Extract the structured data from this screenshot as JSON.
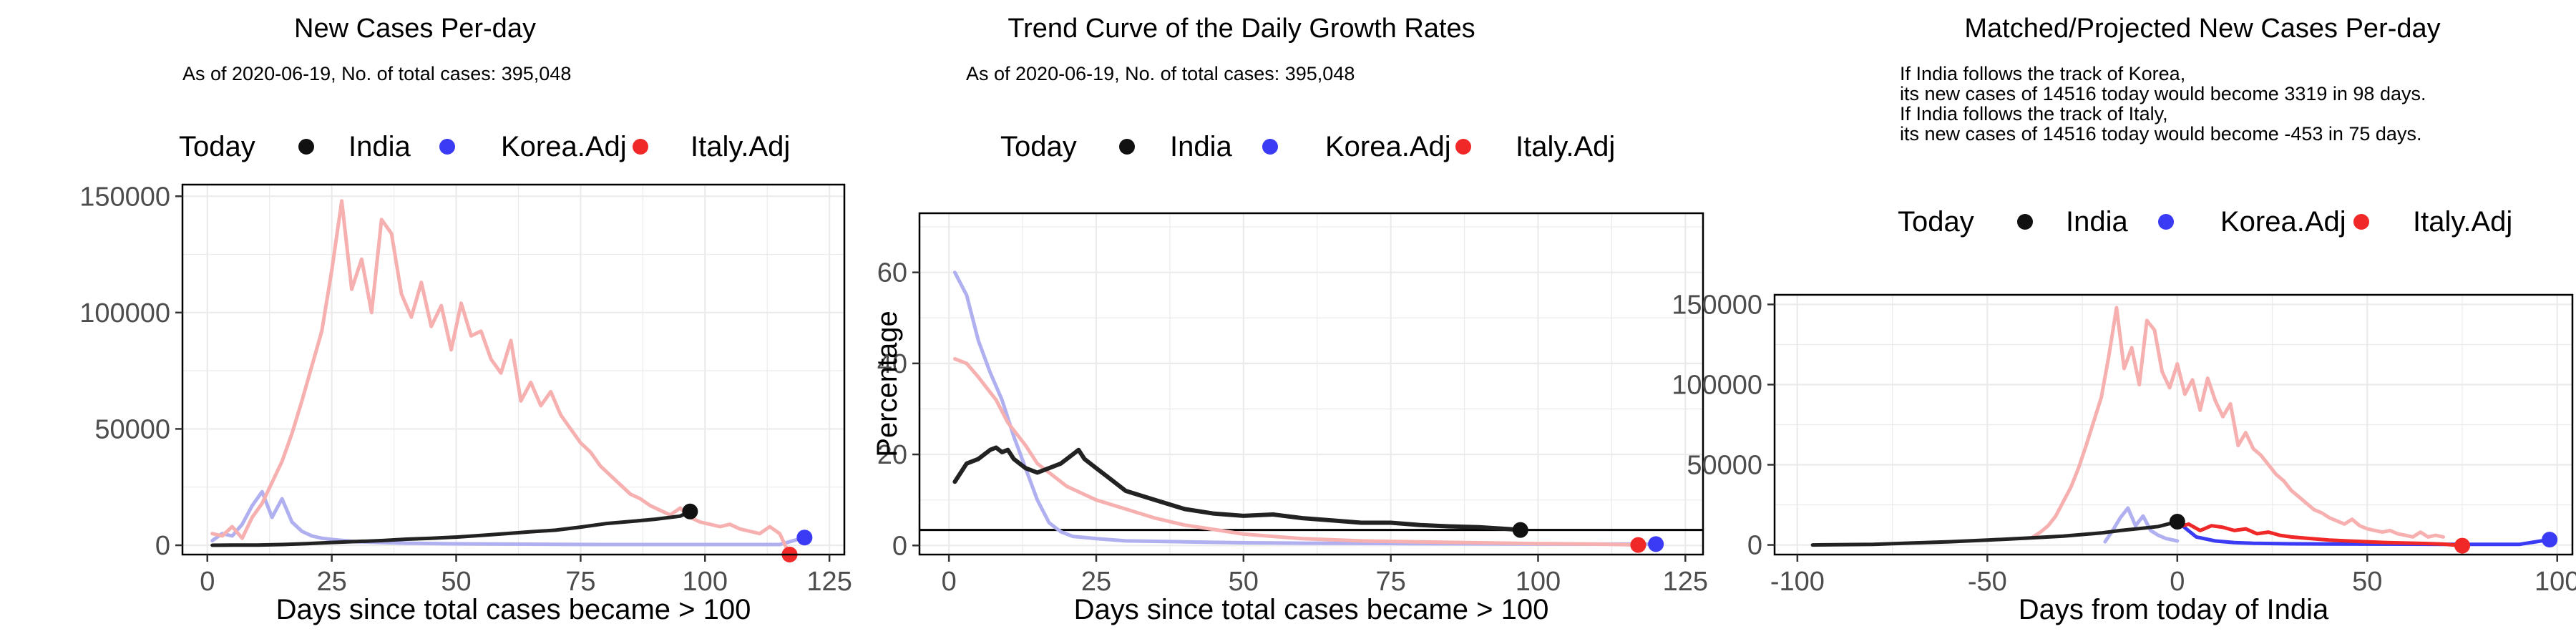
{
  "charts": [
    {
      "title": "New Cases Per-day",
      "subtitle_lines": [
        "As of 2020-06-19, No. of total cases: 395,048"
      ],
      "legend": {
        "title": "Today",
        "items": [
          "India",
          "Korea.Adj",
          "Italy.Adj"
        ]
      },
      "xlabel": "Days since total cases became > 100",
      "ylabel": "",
      "x_ticks": [
        "0",
        "25",
        "50",
        "75",
        "100",
        "125"
      ],
      "y_ticks": [
        "0",
        "50000",
        "100000",
        "150000"
      ]
    },
    {
      "title": "Trend Curve of the Daily Growth Rates",
      "subtitle_lines": [
        "As of 2020-06-19, No. of total cases: 395,048"
      ],
      "legend": {
        "title": "Today",
        "items": [
          "India",
          "Korea.Adj",
          "Italy.Adj"
        ]
      },
      "xlabel": "Days since total cases became > 100",
      "ylabel": "Percentage",
      "x_ticks": [
        "0",
        "25",
        "50",
        "75",
        "100",
        "125"
      ],
      "y_ticks": [
        "0",
        "20",
        "40",
        "60"
      ]
    },
    {
      "title": "Matched/Projected New Cases Per-day",
      "subtitle_lines": [
        "If India follows the track of Korea,",
        "its new cases of 14516 today would become 3319 in 98 days.",
        "If India follows the track of Italy,",
        "its new cases of 14516 today would become -453 in 75 days."
      ],
      "legend": {
        "title": "Today",
        "items": [
          "India",
          "Korea.Adj",
          "Italy.Adj"
        ]
      },
      "xlabel": "Days from today of India",
      "ylabel": "",
      "x_ticks": [
        "-100",
        "-50",
        "0",
        "50",
        "100"
      ],
      "y_ticks": [
        "0",
        "50000",
        "100000",
        "150000"
      ]
    }
  ],
  "colors": {
    "india": "#222222",
    "india_point": "#111111",
    "korea": "#3b3bf5",
    "korea_light": "#b0b0f0",
    "italy": "#f02828",
    "italy_light": "#f7b0b0",
    "grid": "#ebebeb",
    "axis": "#000000",
    "tick_text": "#4d4d4d"
  },
  "chart_data": [
    {
      "type": "line",
      "title": "New Cases Per-day",
      "xlabel": "Days since total cases became > 100",
      "ylabel": "",
      "xlim": [
        -5,
        128
      ],
      "ylim": [
        -4000,
        155000
      ],
      "grid": true,
      "legend_position": "top",
      "series": [
        {
          "name": "India",
          "x": [
            1,
            5,
            10,
            15,
            20,
            25,
            30,
            35,
            40,
            45,
            50,
            55,
            60,
            65,
            70,
            75,
            80,
            85,
            90,
            95,
            97
          ],
          "values": [
            0,
            60,
            100,
            300,
            700,
            1200,
            1600,
            2000,
            2600,
            3000,
            3500,
            4200,
            5000,
            5800,
            6500,
            7800,
            9300,
            10200,
            11200,
            12500,
            14516
          ]
        },
        {
          "name": "Korea.Adj",
          "x": [
            1,
            3,
            5,
            7,
            9,
            11,
            13,
            15,
            17,
            19,
            21,
            23,
            25,
            30,
            40,
            50,
            60,
            70,
            80,
            90,
            100,
            110,
            115,
            120
          ],
          "values": [
            2000,
            5000,
            4000,
            9000,
            17000,
            23000,
            12000,
            20000,
            10000,
            6000,
            4000,
            3000,
            2500,
            1500,
            900,
            600,
            500,
            400,
            300,
            300,
            300,
            300,
            300,
            3319
          ]
        },
        {
          "name": "Italy.Adj",
          "x": [
            1,
            3,
            5,
            7,
            9,
            11,
            13,
            15,
            17,
            19,
            21,
            23,
            25,
            27,
            29,
            31,
            33,
            35,
            37,
            39,
            41,
            43,
            45,
            47,
            49,
            51,
            53,
            55,
            57,
            59,
            61,
            63,
            65,
            67,
            69,
            71,
            73,
            75,
            77,
            79,
            81,
            83,
            85,
            87,
            89,
            91,
            93,
            95,
            97,
            99,
            101,
            103,
            105,
            107,
            109,
            111,
            113,
            115,
            117
          ],
          "values": [
            5000,
            4000,
            8000,
            3000,
            12000,
            18000,
            27000,
            36000,
            48000,
            62000,
            77000,
            92000,
            118000,
            148000,
            110000,
            123000,
            100000,
            140000,
            134000,
            108000,
            98000,
            113000,
            94000,
            103000,
            84000,
            104000,
            90000,
            92000,
            80000,
            74000,
            88000,
            62000,
            70000,
            60000,
            66000,
            56000,
            50000,
            44000,
            40000,
            34000,
            30000,
            26000,
            22000,
            20000,
            17000,
            15000,
            13000,
            16000,
            12000,
            10000,
            9000,
            8000,
            9000,
            7000,
            6000,
            5000,
            8000,
            5000,
            -4000
          ]
        }
      ]
    },
    {
      "type": "line",
      "title": "Trend Curve of the Daily Growth Rates",
      "xlabel": "Days since total cases became > 100",
      "ylabel": "Percentage",
      "xlim": [
        -5,
        128
      ],
      "ylim": [
        -2,
        73
      ],
      "grid": true,
      "legend_position": "top",
      "reference_line_y": 3.4,
      "series": [
        {
          "name": "India",
          "x": [
            1,
            3,
            5,
            7,
            8,
            9,
            10,
            11,
            13,
            15,
            17,
            19,
            21,
            22,
            23,
            25,
            27,
            30,
            35,
            40,
            45,
            50,
            55,
            60,
            65,
            70,
            75,
            80,
            85,
            90,
            95,
            97
          ],
          "values": [
            14,
            18,
            19,
            21,
            21.5,
            20.5,
            21,
            19,
            17,
            16,
            17,
            18,
            20,
            21,
            19,
            17,
            15,
            12,
            10,
            8,
            7,
            6.5,
            6.8,
            6,
            5.5,
            5,
            5,
            4.5,
            4.2,
            4,
            3.6,
            3.4
          ]
        },
        {
          "name": "Korea.Adj",
          "x": [
            1,
            3,
            5,
            7,
            9,
            11,
            13,
            15,
            17,
            19,
            21,
            25,
            30,
            40,
            50,
            60,
            80,
            100,
            120
          ],
          "values": [
            60,
            55,
            45,
            38,
            32,
            24,
            17,
            10,
            5,
            3,
            2,
            1.5,
            1,
            0.8,
            0.6,
            0.5,
            0.4,
            0.3,
            0.3
          ]
        },
        {
          "name": "Italy.Adj",
          "x": [
            1,
            3,
            5,
            8,
            10,
            13,
            15,
            18,
            20,
            25,
            30,
            35,
            40,
            45,
            50,
            55,
            60,
            70,
            80,
            90,
            100,
            110,
            117
          ],
          "values": [
            41,
            40,
            37,
            32,
            27,
            22,
            18,
            15,
            13,
            10,
            8,
            6,
            4.5,
            3.5,
            2.5,
            2,
            1.5,
            1,
            0.8,
            0.6,
            0.4,
            0.3,
            0.1
          ]
        }
      ]
    },
    {
      "type": "line",
      "title": "Matched/Projected New Cases Per-day",
      "xlabel": "Days from today of India",
      "ylabel": "",
      "xlim": [
        -106,
        104
      ],
      "ylim": [
        -6000,
        156000
      ],
      "grid": true,
      "legend_position": "top",
      "series": [
        {
          "name": "India",
          "x": [
            -96,
            -90,
            -80,
            -70,
            -60,
            -50,
            -40,
            -30,
            -20,
            -15,
            -10,
            -5,
            0
          ],
          "values": [
            0,
            100,
            400,
            1200,
            2000,
            3000,
            4200,
            5500,
            7500,
            9000,
            10200,
            11500,
            14516
          ]
        },
        {
          "name": "Korea.Adj (history)",
          "x": [
            -19,
            -17,
            -15,
            -13,
            -11,
            -9,
            -7,
            -5,
            -3,
            -1,
            0
          ],
          "values": [
            2000,
            9000,
            17000,
            23000,
            12000,
            18000,
            9000,
            6000,
            4000,
            3000,
            2500
          ]
        },
        {
          "name": "Korea.Adj (projection)",
          "x": [
            0,
            5,
            10,
            15,
            20,
            30,
            40,
            50,
            60,
            70,
            80,
            90,
            98
          ],
          "values": [
            14516,
            5000,
            2500,
            1500,
            1000,
            700,
            600,
            500,
            450,
            400,
            380,
            350,
            3319
          ]
        },
        {
          "name": "Italy.Adj (history)",
          "x": [
            -38,
            -36,
            -34,
            -32,
            -30,
            -28,
            -26,
            -24,
            -22,
            -20,
            -18,
            -16,
            -14,
            -12,
            -10,
            -8,
            -6,
            -4,
            -2,
            0,
            2,
            4,
            6,
            8,
            10,
            12,
            14,
            16,
            18,
            20,
            22,
            24,
            26,
            28,
            30,
            32,
            34,
            36,
            38,
            40,
            42,
            44,
            46,
            48,
            50,
            52,
            54,
            56,
            58,
            60,
            62,
            64,
            66,
            68,
            70
          ],
          "values": [
            5000,
            8000,
            12000,
            18000,
            27000,
            36000,
            48000,
            62000,
            77000,
            92000,
            118000,
            148000,
            110000,
            123000,
            100000,
            140000,
            134000,
            108000,
            98000,
            113000,
            94000,
            103000,
            84000,
            104000,
            90000,
            80000,
            88000,
            62000,
            70000,
            60000,
            56000,
            50000,
            44000,
            40000,
            34000,
            30000,
            26000,
            22000,
            20000,
            17000,
            15000,
            13000,
            16000,
            12000,
            10000,
            9000,
            8000,
            9000,
            7000,
            6000,
            5000,
            8000,
            5000,
            6000,
            5000
          ]
        },
        {
          "name": "Italy.Adj (projection)",
          "x": [
            0,
            3,
            6,
            9,
            12,
            15,
            18,
            21,
            24,
            27,
            30,
            35,
            40,
            45,
            50,
            55,
            60,
            65,
            70,
            75
          ],
          "values": [
            11000,
            13000,
            9000,
            12000,
            11000,
            9000,
            10000,
            7000,
            8000,
            6000,
            5000,
            4000,
            3000,
            2500,
            2000,
            1500,
            1200,
            900,
            500,
            -453
          ]
        }
      ]
    }
  ]
}
